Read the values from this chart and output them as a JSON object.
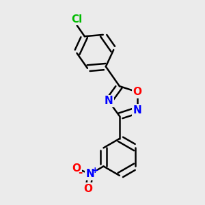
{
  "bg_color": "#ebebeb",
  "bond_color": "#000000",
  "bond_width": 1.8,
  "atom_colors": {
    "N": "#0000ff",
    "O": "#ff0000",
    "Cl": "#00bb00",
    "C": "#000000"
  },
  "font_size_atom": 11,
  "font_size_charge": 9
}
